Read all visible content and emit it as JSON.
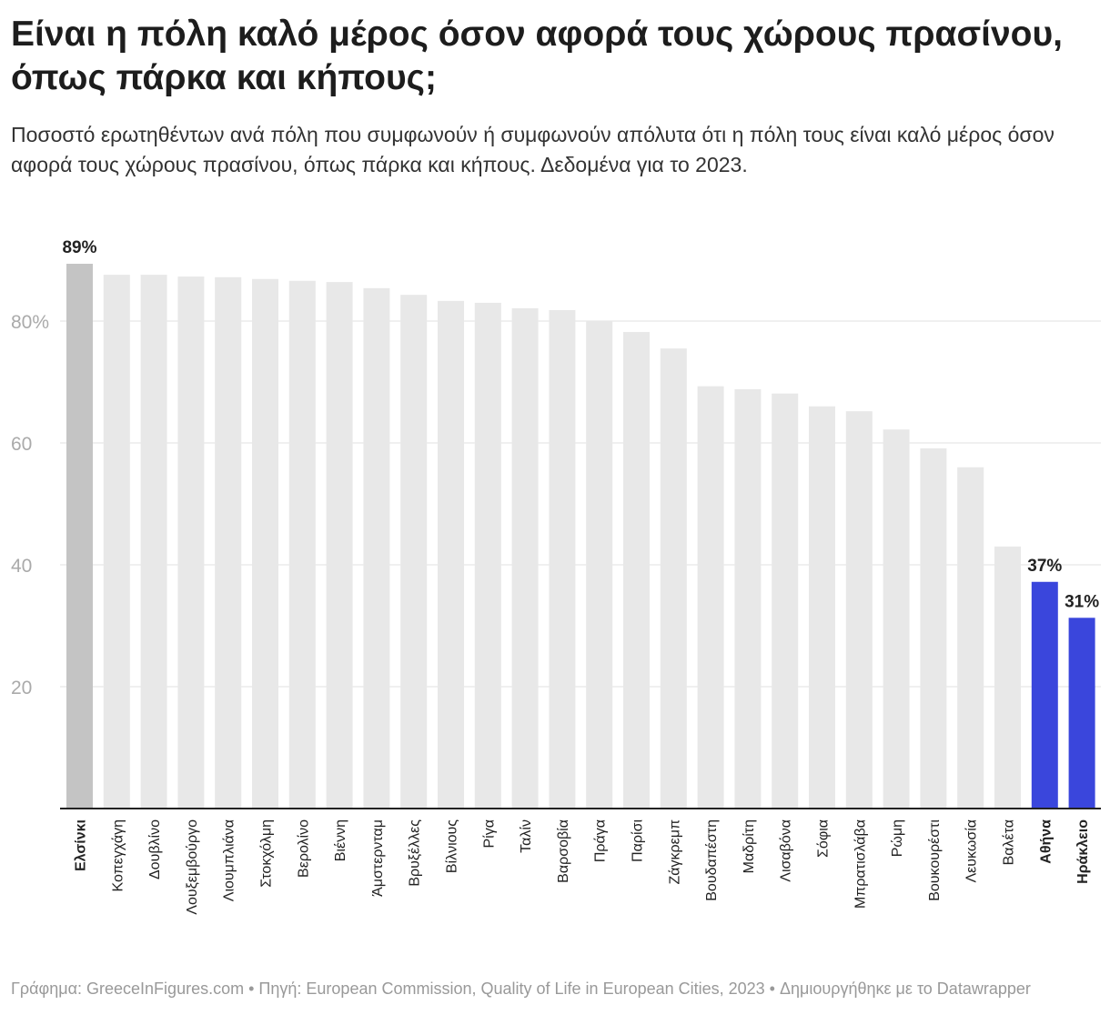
{
  "title": "Είναι η πόλη καλό μέρος όσον αφορά τους χώρους πρασίνου, όπως πάρκα και κήπους;",
  "subtitle": "Ποσοστό ερωτηθέντων ανά πόλη που συμφωνούν ή συμφωνούν απόλυτα ότι η πόλη τους είναι καλό μέρος όσον αφορά τους χώρους πρασίνου, όπως πάρκα και κήπους. Δεδομένα για το 2023.",
  "footer": "Γράφημα: GreeceInFigures.com • Πηγή: European Commission, Quality of Life in European Cities, 2023 • Δημιουργήθηκε με το Datawrapper",
  "colors": {
    "default": "#e8e8e8",
    "helsinki": "#c4c4c4",
    "highlight": "#3a46dc",
    "grid": "#e2e2e2",
    "axis": "#222222"
  },
  "chart_data": {
    "type": "bar",
    "title": "",
    "xlabel": "",
    "ylabel": "",
    "ylim": [
      0,
      90
    ],
    "yticks": [
      20,
      40,
      60,
      80
    ],
    "ytick_labels": [
      "20",
      "40",
      "60",
      "80%"
    ],
    "grid": true,
    "categories": [
      "Ελσίνκι",
      "Κοπεγχάγη",
      "Δουβλίνο",
      "Λουξεμβούργο",
      "Λιουμπλιάνα",
      "Στοκχόλμη",
      "Βερολίνο",
      "Βιέννη",
      "Άμστερνταμ",
      "Βρυξέλλες",
      "Βίλνιους",
      "Ρίγα",
      "Ταλίν",
      "Βαρσοβία",
      "Πράγα",
      "Παρίσι",
      "Ζάγκρεμπ",
      "Βουδαπέστη",
      "Μαδρίτη",
      "Λισαβόνα",
      "Σόφια",
      "Μπρατισλάβα",
      "Ρώμη",
      "Βουκουρέστι",
      "Λευκωσία",
      "Βαλέτα",
      "Αθήνα",
      "Ηράκλειο"
    ],
    "values": [
      89.4,
      87.6,
      87.6,
      87.3,
      87.2,
      86.9,
      86.6,
      86.4,
      85.4,
      84.3,
      83.3,
      83.0,
      82.1,
      81.8,
      80.1,
      78.2,
      75.5,
      69.3,
      68.8,
      68.1,
      66.0,
      65.2,
      62.2,
      59.1,
      56.0,
      43.0,
      37.2,
      31.3
    ],
    "bold_categories": [
      "Ελσίνκι",
      "Αθήνα",
      "Ηράκλειο"
    ],
    "data_labels": [
      {
        "category": "Ελσίνκι",
        "text": "89%"
      },
      {
        "category": "Αθήνα",
        "text": "37%"
      },
      {
        "category": "Ηράκλειο",
        "text": "31%"
      }
    ]
  }
}
